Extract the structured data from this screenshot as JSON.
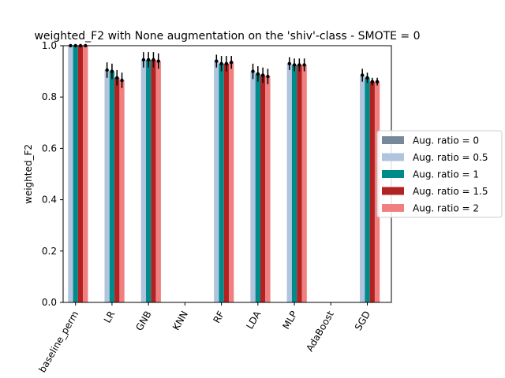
{
  "chart_data": {
    "type": "bar",
    "title": "weighted_F2 with None augmentation on the 'shiv'-class - SMOTE = 0",
    "xlabel": "",
    "ylabel": "weighted_F2",
    "ylim": [
      0,
      1
    ],
    "yticks": [
      0.0,
      0.2,
      0.4,
      0.6,
      0.8,
      1.0
    ],
    "ytick_labels": [
      "0.0",
      "0.2",
      "0.4",
      "0.6",
      "0.8",
      "1.0"
    ],
    "categories": [
      "baseline_perm",
      "LR",
      "GNB",
      "KNN",
      "RF",
      "LDA",
      "MLP",
      "AdaBoost",
      "SGD"
    ],
    "legend_position": "center-right, outside plot",
    "grid": false,
    "series": [
      {
        "name": "Aug. ratio = 0",
        "color": "#778899",
        "values": [
          null,
          null,
          null,
          null,
          null,
          null,
          null,
          null,
          null
        ],
        "errors": [
          null,
          null,
          null,
          null,
          null,
          null,
          null,
          null,
          null
        ]
      },
      {
        "name": "Aug. ratio = 0.5",
        "color": "#b0c4de",
        "values": [
          1.0,
          0.905,
          0.945,
          null,
          0.94,
          0.9,
          0.93,
          null,
          0.885
        ],
        "errors": [
          0.0,
          0.03,
          0.03,
          null,
          0.025,
          0.03,
          0.025,
          null,
          0.025
        ]
      },
      {
        "name": "Aug. ratio = 1",
        "color": "#008b8b",
        "values": [
          1.0,
          0.9,
          0.945,
          null,
          0.93,
          0.89,
          0.925,
          null,
          0.875
        ],
        "errors": [
          0.0,
          0.03,
          0.03,
          null,
          0.03,
          0.03,
          0.025,
          null,
          0.02
        ]
      },
      {
        "name": "Aug. ratio = 1.5",
        "color": "#b22222",
        "values": [
          1.0,
          0.875,
          0.945,
          null,
          0.93,
          0.885,
          0.925,
          null,
          0.86
        ],
        "errors": [
          0.0,
          0.03,
          0.03,
          null,
          0.03,
          0.03,
          0.025,
          null,
          0.015
        ]
      },
      {
        "name": "Aug. ratio = 2",
        "color": "#f08080",
        "values": [
          1.0,
          0.865,
          0.94,
          null,
          0.935,
          0.88,
          0.925,
          null,
          0.86
        ],
        "errors": [
          0.0,
          0.03,
          0.03,
          null,
          0.025,
          0.03,
          0.025,
          null,
          0.015
        ]
      }
    ]
  }
}
